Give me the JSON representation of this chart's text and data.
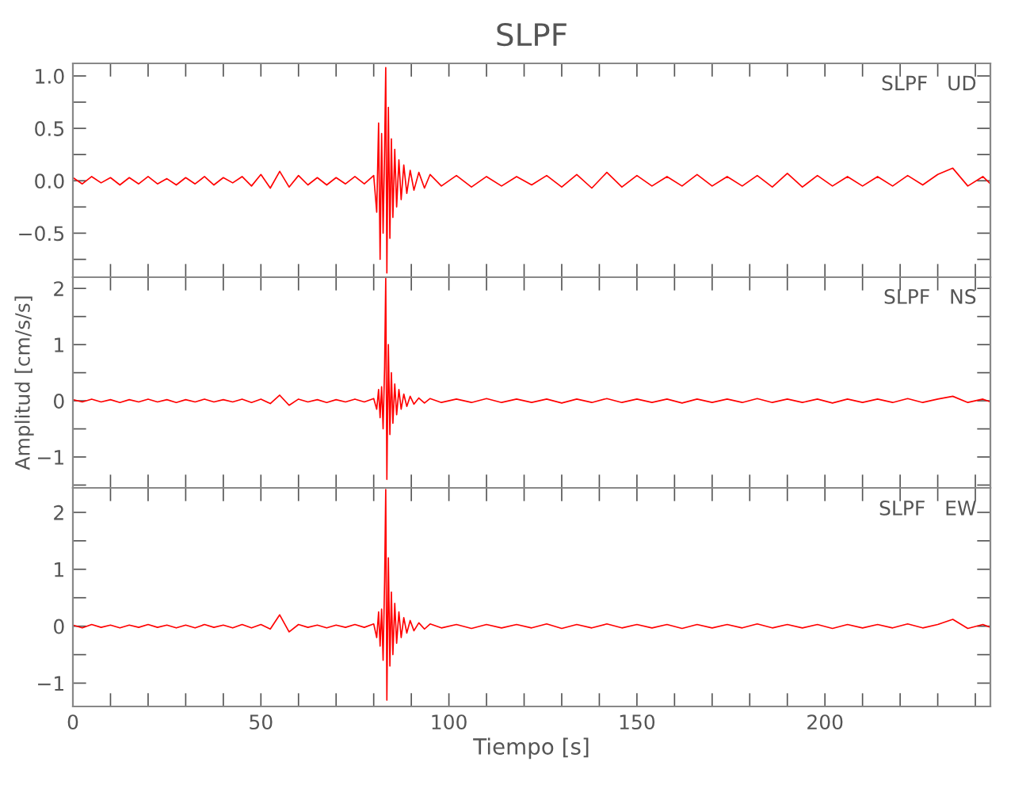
{
  "chart_data": [
    {
      "type": "line",
      "title": "SLPF",
      "annotations": [
        "SLPF   UD"
      ],
      "tick_labels": "y",
      "x": [
        0,
        2.5,
        5,
        7.5,
        10,
        12.5,
        15,
        17.5,
        20,
        22.5,
        25,
        27.5,
        30,
        32.5,
        35,
        37.5,
        40,
        42.5,
        45,
        47.5,
        50,
        52.5,
        55,
        57.5,
        60,
        62.5,
        65,
        67.5,
        70,
        72.5,
        75,
        77.5,
        80,
        80.8,
        81.3,
        81.7,
        82.1,
        82.5,
        82.9,
        83.2,
        83.5,
        83.9,
        84.3,
        84.7,
        85.1,
        85.6,
        86.1,
        86.7,
        87.3,
        88,
        88.8,
        89.7,
        90.7,
        92,
        93.5,
        95,
        98,
        102,
        106,
        110,
        114,
        118,
        122,
        126,
        130,
        134,
        138,
        142,
        146,
        150,
        154,
        158,
        162,
        166,
        170,
        174,
        178,
        182,
        186,
        190,
        194,
        198,
        202,
        206,
        210,
        214,
        218,
        222,
        226,
        230,
        234,
        238,
        242,
        244
      ],
      "series": [
        {
          "color": "#ff0000",
          "values": [
            0.03,
            -0.03,
            0.04,
            -0.02,
            0.03,
            -0.04,
            0.03,
            -0.03,
            0.04,
            -0.03,
            0.02,
            -0.04,
            0.03,
            -0.03,
            0.04,
            -0.04,
            0.03,
            -0.02,
            0.04,
            -0.05,
            0.06,
            -0.07,
            0.09,
            -0.06,
            0.05,
            -0.04,
            0.03,
            -0.04,
            0.03,
            -0.03,
            0.04,
            -0.03,
            0.05,
            -0.3,
            0.55,
            -0.75,
            0.45,
            -0.5,
            0.3,
            1.08,
            -0.88,
            0.7,
            -0.55,
            0.4,
            -0.35,
            0.3,
            -0.25,
            0.2,
            -0.18,
            0.15,
            -0.12,
            0.1,
            -0.09,
            0.08,
            -0.07,
            0.06,
            -0.05,
            0.05,
            -0.06,
            0.04,
            -0.05,
            0.04,
            -0.04,
            0.05,
            -0.06,
            0.06,
            -0.07,
            0.08,
            -0.06,
            0.05,
            -0.05,
            0.04,
            -0.05,
            0.06,
            -0.05,
            0.04,
            -0.05,
            0.05,
            -0.06,
            0.07,
            -0.06,
            0.05,
            -0.05,
            0.04,
            -0.05,
            0.04,
            -0.05,
            0.05,
            -0.04,
            0.06,
            0.12,
            -0.05,
            0.04,
            -0.03
          ]
        }
      ],
      "xlim": [
        0,
        244
      ],
      "xticks": [
        0,
        {
          "value": 10,
          "label": null
        },
        {
          "value": 20,
          "label": null
        },
        {
          "value": 30,
          "label": null
        },
        {
          "value": 40,
          "label": null
        },
        50,
        {
          "value": 60,
          "label": null
        },
        {
          "value": 70,
          "label": null
        },
        {
          "value": 80,
          "label": null
        },
        {
          "value": 90,
          "label": null
        },
        100,
        {
          "value": 110,
          "label": null
        },
        {
          "value": 120,
          "label": null
        },
        {
          "value": 130,
          "label": null
        },
        {
          "value": 140,
          "label": null
        },
        150,
        {
          "value": 160,
          "label": null
        },
        {
          "value": 170,
          "label": null
        },
        {
          "value": 180,
          "label": null
        },
        {
          "value": 190,
          "label": null
        },
        200,
        {
          "value": 210,
          "label": null
        },
        {
          "value": 220,
          "label": null
        },
        {
          "value": 230,
          "label": null
        },
        {
          "value": 240,
          "label": null
        }
      ],
      "ylim": [
        -0.92,
        1.12
      ],
      "yticks": [
        {
          "value": -0.75,
          "label": null
        },
        {
          "value": -0.5,
          "label": "−0.5"
        },
        {
          "value": -0.25,
          "label": null
        },
        {
          "value": 0,
          "label": "0.0"
        },
        {
          "value": 0.25,
          "label": null
        },
        {
          "value": 0.5,
          "label": "0.5"
        },
        {
          "value": 0.75,
          "label": null
        },
        {
          "value": 1,
          "label": "1.0"
        }
      ]
    },
    {
      "type": "line",
      "ylabel": "Amplitud [cm/s/s]",
      "annotations": [
        "SLPF   NS"
      ],
      "tick_labels": "y",
      "x": [
        0,
        2.5,
        5,
        7.5,
        10,
        12.5,
        15,
        17.5,
        20,
        22.5,
        25,
        27.5,
        30,
        32.5,
        35,
        37.5,
        40,
        42.5,
        45,
        47.5,
        50,
        52.5,
        55,
        57.5,
        60,
        62.5,
        65,
        67.5,
        70,
        72.5,
        75,
        77.5,
        80,
        80.8,
        81.3,
        81.7,
        82.1,
        82.5,
        82.9,
        83.2,
        83.5,
        83.9,
        84.3,
        84.7,
        85.1,
        85.6,
        86.1,
        86.7,
        87.3,
        88,
        88.8,
        89.7,
        90.7,
        92,
        93.5,
        95,
        98,
        102,
        106,
        110,
        114,
        118,
        122,
        126,
        130,
        134,
        138,
        142,
        146,
        150,
        154,
        158,
        162,
        166,
        170,
        174,
        178,
        182,
        186,
        190,
        194,
        198,
        202,
        206,
        210,
        214,
        218,
        222,
        226,
        230,
        234,
        238,
        242,
        244
      ],
      "series": [
        {
          "color": "#ff0000",
          "values": [
            0.02,
            -0.02,
            0.03,
            -0.02,
            0.02,
            -0.03,
            0.02,
            -0.02,
            0.03,
            -0.02,
            0.02,
            -0.03,
            0.02,
            -0.02,
            0.03,
            -0.02,
            0.02,
            -0.02,
            0.03,
            -0.03,
            0.03,
            -0.05,
            0.1,
            -0.08,
            0.03,
            -0.02,
            0.02,
            -0.03,
            0.02,
            -0.02,
            0.03,
            -0.02,
            0.04,
            -0.15,
            0.2,
            -0.3,
            0.25,
            -0.5,
            0.6,
            2.18,
            -1.4,
            1.0,
            -0.6,
            0.5,
            -0.4,
            0.3,
            -0.25,
            0.2,
            -0.15,
            0.12,
            -0.1,
            0.08,
            -0.06,
            0.05,
            -0.04,
            0.04,
            -0.03,
            0.03,
            -0.03,
            0.04,
            -0.03,
            0.03,
            -0.03,
            0.03,
            -0.04,
            0.03,
            -0.03,
            0.04,
            -0.03,
            0.03,
            -0.03,
            0.03,
            -0.04,
            0.03,
            -0.03,
            0.03,
            -0.03,
            0.04,
            -0.03,
            0.03,
            -0.03,
            0.03,
            -0.04,
            0.03,
            -0.03,
            0.03,
            -0.03,
            0.04,
            -0.03,
            0.03,
            0.08,
            -0.03,
            0.03,
            -0.02
          ]
        }
      ],
      "xlim": [
        0,
        244
      ],
      "xticks": [
        0,
        {
          "value": 10,
          "label": null
        },
        {
          "value": 20,
          "label": null
        },
        {
          "value": 30,
          "label": null
        },
        {
          "value": 40,
          "label": null
        },
        50,
        {
          "value": 60,
          "label": null
        },
        {
          "value": 70,
          "label": null
        },
        {
          "value": 80,
          "label": null
        },
        {
          "value": 90,
          "label": null
        },
        100,
        {
          "value": 110,
          "label": null
        },
        {
          "value": 120,
          "label": null
        },
        {
          "value": 130,
          "label": null
        },
        {
          "value": 140,
          "label": null
        },
        150,
        {
          "value": 160,
          "label": null
        },
        {
          "value": 170,
          "label": null
        },
        {
          "value": 180,
          "label": null
        },
        {
          "value": 190,
          "label": null
        },
        200,
        {
          "value": 210,
          "label": null
        },
        {
          "value": 220,
          "label": null
        },
        {
          "value": 230,
          "label": null
        },
        {
          "value": 240,
          "label": null
        }
      ],
      "ylim": [
        -1.55,
        2.2
      ],
      "yticks": [
        {
          "value": -1.5,
          "label": null
        },
        {
          "value": -1,
          "label": "−1"
        },
        {
          "value": -0.5,
          "label": null
        },
        0,
        {
          "value": 0.5,
          "label": null
        },
        1,
        {
          "value": 1.5,
          "label": null
        },
        2
      ]
    },
    {
      "type": "line",
      "xlabel": "Tiempo [s]",
      "annotations": [
        "SLPF   EW"
      ],
      "x": [
        0,
        2.5,
        5,
        7.5,
        10,
        12.5,
        15,
        17.5,
        20,
        22.5,
        25,
        27.5,
        30,
        32.5,
        35,
        37.5,
        40,
        42.5,
        45,
        47.5,
        50,
        52.5,
        55,
        57.5,
        60,
        62.5,
        65,
        67.5,
        70,
        72.5,
        75,
        77.5,
        80,
        80.8,
        81.3,
        81.7,
        82.1,
        82.5,
        82.9,
        83.2,
        83.5,
        83.9,
        84.3,
        84.7,
        85.1,
        85.6,
        86.1,
        86.7,
        87.3,
        88,
        88.8,
        89.7,
        90.7,
        92,
        93.5,
        95,
        98,
        102,
        106,
        110,
        114,
        118,
        122,
        126,
        130,
        134,
        138,
        142,
        146,
        150,
        154,
        158,
        162,
        166,
        170,
        174,
        178,
        182,
        186,
        190,
        194,
        198,
        202,
        206,
        210,
        214,
        218,
        222,
        226,
        230,
        234,
        238,
        242,
        244
      ],
      "series": [
        {
          "color": "#ff0000",
          "values": [
            0.02,
            -0.03,
            0.03,
            -0.02,
            0.02,
            -0.03,
            0.02,
            -0.02,
            0.03,
            -0.02,
            0.02,
            -0.03,
            0.02,
            -0.03,
            0.03,
            -0.02,
            0.02,
            -0.03,
            0.03,
            -0.03,
            0.03,
            -0.05,
            0.2,
            -0.1,
            0.03,
            -0.02,
            0.02,
            -0.03,
            0.02,
            -0.02,
            0.03,
            -0.02,
            0.04,
            -0.2,
            0.25,
            -0.35,
            0.3,
            -0.6,
            0.8,
            2.4,
            -1.3,
            1.2,
            -0.7,
            0.6,
            -0.5,
            0.4,
            -0.3,
            0.25,
            -0.2,
            0.15,
            -0.12,
            0.1,
            -0.08,
            0.06,
            -0.05,
            0.04,
            -0.03,
            0.03,
            -0.04,
            0.03,
            -0.03,
            0.03,
            -0.03,
            0.04,
            -0.04,
            0.03,
            -0.03,
            0.04,
            -0.03,
            0.03,
            -0.03,
            0.03,
            -0.04,
            0.03,
            -0.03,
            0.03,
            -0.03,
            0.04,
            -0.03,
            0.03,
            -0.03,
            0.03,
            -0.04,
            0.03,
            -0.03,
            0.03,
            -0.03,
            0.04,
            -0.03,
            0.03,
            0.12,
            -0.04,
            0.03,
            -0.02
          ]
        }
      ],
      "xlim": [
        0,
        244
      ],
      "xticks": [
        0,
        {
          "value": 10,
          "label": null
        },
        {
          "value": 20,
          "label": null
        },
        {
          "value": 30,
          "label": null
        },
        {
          "value": 40,
          "label": null
        },
        50,
        {
          "value": 60,
          "label": null
        },
        {
          "value": 70,
          "label": null
        },
        {
          "value": 80,
          "label": null
        },
        {
          "value": 90,
          "label": null
        },
        100,
        {
          "value": 110,
          "label": null
        },
        {
          "value": 120,
          "label": null
        },
        {
          "value": 130,
          "label": null
        },
        {
          "value": 140,
          "label": null
        },
        150,
        {
          "value": 160,
          "label": null
        },
        {
          "value": 170,
          "label": null
        },
        {
          "value": 180,
          "label": null
        },
        {
          "value": 190,
          "label": null
        },
        200,
        {
          "value": 210,
          "label": null
        },
        {
          "value": 220,
          "label": null
        },
        {
          "value": 230,
          "label": null
        },
        {
          "value": 240,
          "label": null
        }
      ],
      "ylim": [
        -1.41,
        2.43
      ],
      "yticks": [
        {
          "value": -1,
          "label": "−1"
        },
        {
          "value": -0.5,
          "label": null
        },
        0,
        {
          "value": 0.5,
          "label": null
        },
        1,
        {
          "value": 1.5,
          "label": null
        },
        2
      ]
    }
  ]
}
